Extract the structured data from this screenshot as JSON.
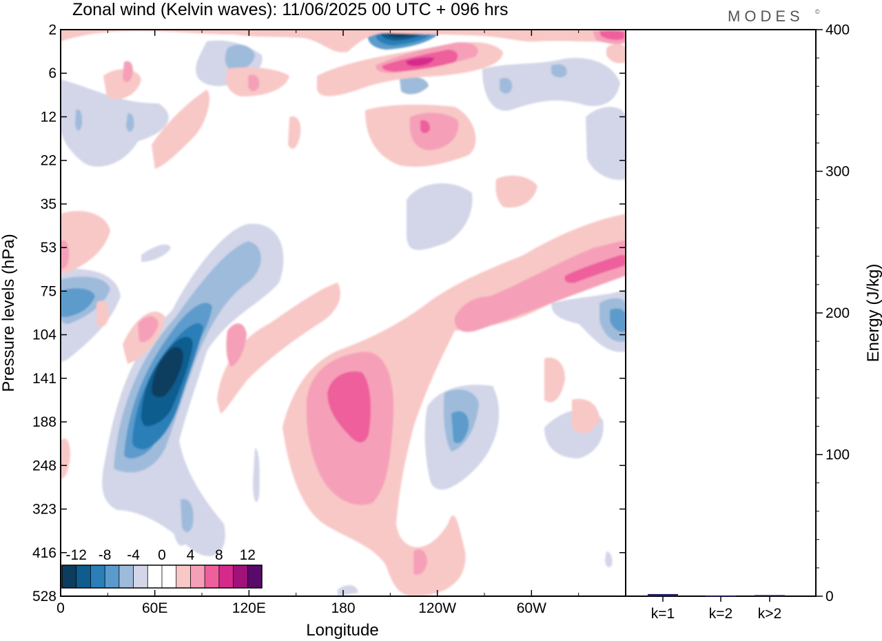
{
  "title": "Zonal wind (Kelvin waves):  11/06/2025  00 UTC  + 096 hrs",
  "brand": "MODES",
  "brand_mark": "©",
  "chart_data": [
    {
      "type": "heatmap",
      "name": "hovmoller",
      "xlabel": "Longitude",
      "ylabel": "Pressure levels (hPa)",
      "x_ticks": [
        "0",
        "60E",
        "120E",
        "180",
        "120W",
        "60W"
      ],
      "x_tick_values": [
        0,
        60,
        120,
        180,
        240,
        300
      ],
      "xlim": [
        0,
        360
      ],
      "y_ticks": [
        "2",
        "6",
        "12",
        "22",
        "35",
        "53",
        "75",
        "104",
        "141",
        "188",
        "248",
        "323",
        "416",
        "528"
      ],
      "colorbar": {
        "labels": [
          "-12",
          "-8",
          "-4",
          "0",
          "4",
          "8",
          "12"
        ],
        "label_values": [
          -12,
          -8,
          -4,
          0,
          4,
          8,
          12
        ],
        "colors": [
          "#0c3d5e",
          "#0f5d8f",
          "#2a7fb8",
          "#5b9bcb",
          "#9fbbdb",
          "#d2d6e8",
          "#ffffff",
          "#ffffff",
          "#f8c8c6",
          "#f5a0b8",
          "#ee5f9c",
          "#d52a8c",
          "#a0127a",
          "#5a0a6a"
        ]
      },
      "features": [
        {
          "lon": 66,
          "level": "141",
          "value": -14
        },
        {
          "lon": 58,
          "level": "188",
          "value": -10
        },
        {
          "lon": 80,
          "level": "75",
          "value": -6
        },
        {
          "lon": 10,
          "level": "104",
          "value": -7
        },
        {
          "lon": 184,
          "level": "141",
          "value": 8
        },
        {
          "lon": 240,
          "level": "104",
          "value": 6
        },
        {
          "lon": 320,
          "level": "75",
          "value": 6
        },
        {
          "lon": 230,
          "level": "12",
          "value": 6
        },
        {
          "lon": 220,
          "level": "2",
          "value": -14
        },
        {
          "lon": 225,
          "level": "6",
          "value": 10
        },
        {
          "lon": 250,
          "level": "188",
          "value": -6
        },
        {
          "lon": 355,
          "level": "104",
          "value": -6
        },
        {
          "lon": 50,
          "level": "104",
          "value": 5
        },
        {
          "lon": 112,
          "level": "104",
          "value": 5
        },
        {
          "lon": 220,
          "level": "416",
          "value": 4
        }
      ]
    },
    {
      "type": "bar",
      "name": "energy",
      "ylabel": "Energy (J/kg)",
      "ylim": [
        0,
        400
      ],
      "y_ticks": [
        "0",
        "100",
        "200",
        "300",
        "400"
      ],
      "categories": [
        "k=1",
        "k=2",
        "k>2"
      ],
      "values": [
        1.5,
        0.5,
        0.8
      ],
      "bar_color": "#1a1a6e"
    }
  ]
}
